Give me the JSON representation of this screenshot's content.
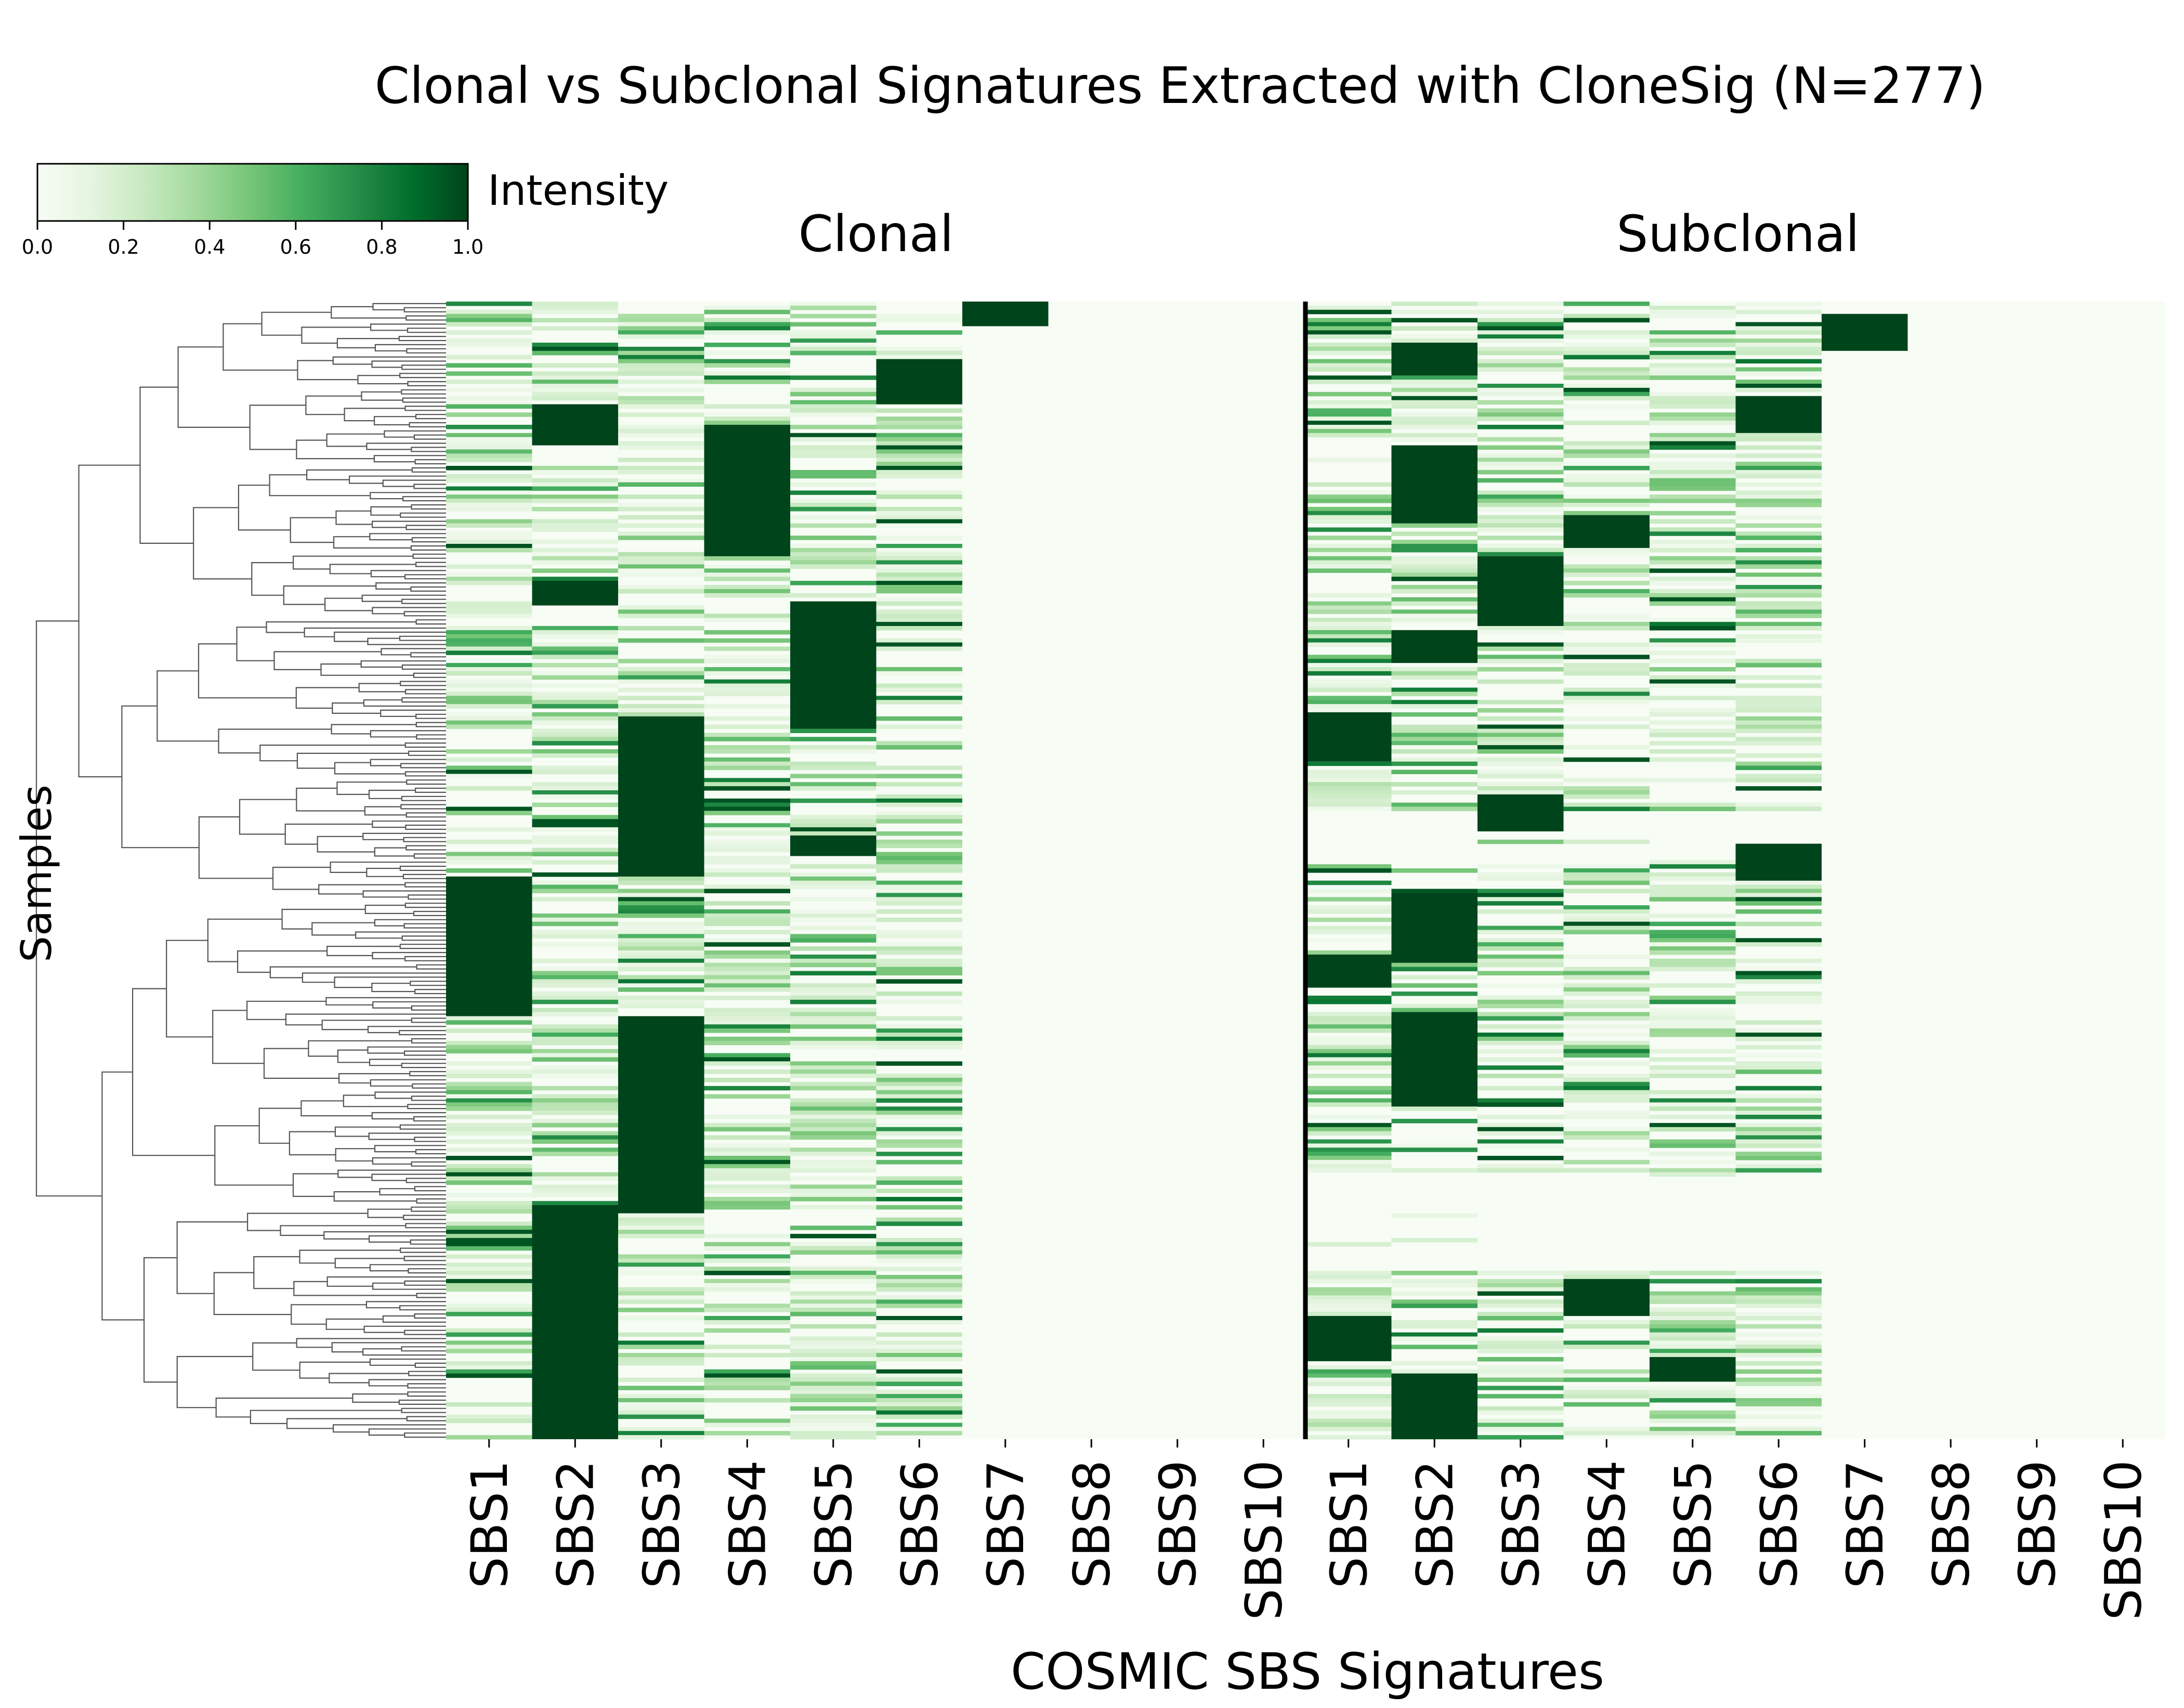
{
  "chart_data": {
    "type": "heatmap",
    "title": "Clonal vs Subclonal Signatures Extracted with CloneSig (N=277)",
    "xlabel": "COSMIC SBS Signatures",
    "ylabel": "Samples",
    "n_samples": 277,
    "colorbar": {
      "label": "Intensity",
      "range": [
        0,
        1
      ],
      "ticks": [
        "0.0",
        "0.2",
        "0.4",
        "0.6",
        "0.8",
        "1.0"
      ],
      "colormap": "Greens",
      "low_color": "#f7fcf5",
      "high_color": "#00441b"
    },
    "panels": [
      {
        "name": "Clonal",
        "signatures": [
          "SBS1",
          "SBS2",
          "SBS3",
          "SBS4",
          "SBS5",
          "SBS6",
          "SBS7",
          "SBS8",
          "SBS9",
          "SBS10"
        ],
        "dominant_blocks": [
          {
            "signature": "SBS7",
            "rows": [
              0,
              5
            ],
            "value": 1.0
          },
          {
            "signature": "SBS6",
            "rows": [
              14,
              24
            ],
            "value": 1.0
          },
          {
            "signature": "SBS2",
            "rows": [
              25,
              34
            ],
            "value": 1.0
          },
          {
            "signature": "SBS4",
            "rows": [
              30,
              61
            ],
            "value": 1.0
          },
          {
            "signature": "SBS2",
            "rows": [
              68,
              73
            ],
            "value": 1.0
          },
          {
            "signature": "SBS5",
            "rows": [
              73,
              103
            ],
            "value": 1.0
          },
          {
            "signature": "SBS3",
            "rows": [
              101,
              139
            ],
            "value": 1.0
          },
          {
            "signature": "SBS5",
            "rows": [
              130,
              134
            ],
            "value": 1.0
          },
          {
            "signature": "SBS1",
            "rows": [
              140,
              173
            ],
            "value": 1.0
          },
          {
            "signature": "SBS3",
            "rows": [
              174,
              221
            ],
            "value": 1.0
          },
          {
            "signature": "SBS2",
            "rows": [
              220,
              276
            ],
            "value": 1.0
          }
        ]
      },
      {
        "name": "Subclonal",
        "signatures": [
          "SBS1",
          "SBS2",
          "SBS3",
          "SBS4",
          "SBS5",
          "SBS6",
          "SBS7",
          "SBS8",
          "SBS9",
          "SBS10"
        ],
        "dominant_blocks": [
          {
            "signature": "SBS7",
            "rows": [
              3,
              11
            ],
            "value": 1.0
          },
          {
            "signature": "SBS2",
            "rows": [
              10,
              17
            ],
            "value": 1.0
          },
          {
            "signature": "SBS6",
            "rows": [
              23,
              31
            ],
            "value": 1.0
          },
          {
            "signature": "SBS2",
            "rows": [
              35,
              53
            ],
            "value": 1.0
          },
          {
            "signature": "SBS4",
            "rows": [
              52,
              59
            ],
            "value": 1.0
          },
          {
            "signature": "SBS3",
            "rows": [
              62,
              78
            ],
            "value": 1.0
          },
          {
            "signature": "SBS2",
            "rows": [
              80,
              87
            ],
            "value": 1.0
          },
          {
            "signature": "SBS1",
            "rows": [
              100,
              111
            ],
            "value": 1.0
          },
          {
            "signature": "SBS3",
            "rows": [
              120,
              128
            ],
            "value": 1.0
          },
          {
            "signature": "SBS6",
            "rows": [
              132,
              140
            ],
            "value": 1.0
          },
          {
            "signature": "SBS2",
            "rows": [
              144,
              160
            ],
            "value": 1.0
          },
          {
            "signature": "SBS1",
            "rows": [
              159,
              166
            ],
            "value": 1.0
          },
          {
            "signature": "SBS2",
            "rows": [
              173,
              195
            ],
            "value": 1.0
          },
          {
            "signature": "SBS4",
            "rows": [
              238,
              246
            ],
            "value": 1.0
          },
          {
            "signature": "SBS1",
            "rows": [
              247,
              257
            ],
            "value": 1.0
          },
          {
            "signature": "SBS5",
            "rows": [
              257,
              262
            ],
            "value": 1.0
          },
          {
            "signature": "SBS2",
            "rows": [
              261,
              276
            ],
            "value": 1.0
          }
        ]
      }
    ],
    "dendrogram": {
      "position": "left",
      "color": "#555555"
    },
    "grid": false
  }
}
